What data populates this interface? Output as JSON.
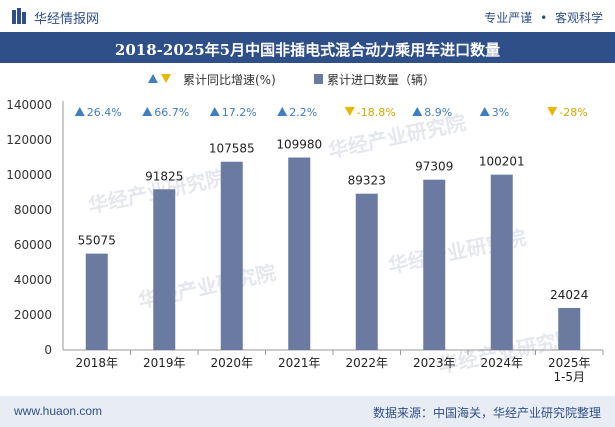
{
  "header": {
    "brand": "华经情报网",
    "tag_pro": "专业严谨",
    "tag_dot": "•",
    "tag_obj": "客观科学",
    "title": "2018-2025年5月中国非插电式混合动力乘用车进口数量"
  },
  "footer": {
    "website": "www.huaon.com",
    "source": "数据来源：中国海关，华经产业研究院整理"
  },
  "watermark": {
    "text": "华经产业研究院",
    "url": "www.huaon.com"
  },
  "colors": {
    "bar": "#6b7aa1",
    "up": "#3f7fbf",
    "down": "#e6b800",
    "header": "#2e4f88"
  },
  "chart_data": {
    "type": "bar",
    "categories": [
      "2018年",
      "2019年",
      "2020年",
      "2021年",
      "2022年",
      "2023年",
      "2024年",
      "2025年\n1-5月"
    ],
    "series": [
      {
        "name": "累计进口数量（辆）",
        "values": [
          55075,
          91825,
          107585,
          109980,
          89323,
          97309,
          100201,
          24024
        ]
      },
      {
        "name": "累计同比增速(%)",
        "values": [
          26.4,
          66.7,
          17.2,
          2.2,
          -18.8,
          8.9,
          3,
          -28
        ]
      }
    ],
    "growth_labels": [
      "26.4%",
      "66.7%",
      "17.2%",
      "2.2%",
      "-18.8%",
      "8.9%",
      "3%",
      "-28%"
    ],
    "value_labels": [
      "55075",
      "91825",
      "107585",
      "109980",
      "89323",
      "97309",
      "100201",
      "24024"
    ],
    "yticks": [
      "0",
      "20000",
      "40000",
      "60000",
      "80000",
      "100000",
      "120000",
      "140000"
    ],
    "ylim": [
      0,
      140000
    ],
    "legend": {
      "growth": "累计同比增速(%)",
      "count": "累计进口数量（辆）"
    }
  }
}
